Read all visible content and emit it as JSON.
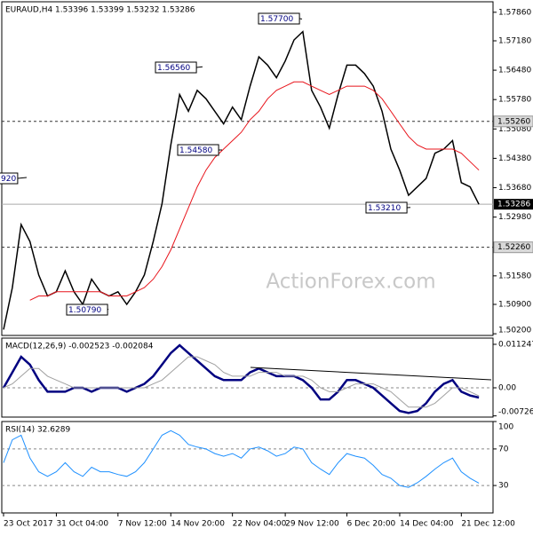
{
  "chart_data": [
    {
      "type": "line",
      "title": "EURAUD,H4 1.53396 1.53399 1.53232 1.53286",
      "x": [
        0,
        1,
        2,
        3,
        4,
        5,
        6,
        7,
        8,
        9,
        10,
        11,
        12,
        13,
        14,
        15,
        16,
        17,
        18,
        19,
        20,
        21,
        22,
        23,
        24,
        25,
        26,
        27,
        28,
        29,
        30,
        31,
        32,
        33,
        34,
        35,
        36,
        37,
        38,
        39,
        40,
        41,
        42,
        43,
        44,
        45,
        46,
        47,
        48,
        49,
        50,
        51,
        52,
        53,
        54
      ],
      "xlim": [
        -0.2,
        55.6
      ],
      "series": [
        {
          "color": "#000000",
          "values": [
            1.503,
            1.513,
            1.528,
            1.524,
            1.516,
            1.511,
            1.512,
            1.517,
            1.512,
            1.509,
            1.515,
            1.512,
            1.511,
            1.512,
            1.509,
            1.512,
            1.516,
            1.524,
            1.533,
            1.547,
            1.559,
            1.555,
            1.56,
            1.558,
            1.555,
            1.552,
            1.556,
            1.553,
            1.561,
            1.568,
            1.566,
            1.563,
            1.567,
            1.572,
            1.574,
            1.56,
            1.556,
            1.551,
            1.559,
            1.566,
            1.566,
            1.564,
            1.561,
            1.555,
            1.546,
            1.541,
            1.535,
            1.537,
            1.539,
            1.545,
            1.546,
            1.548,
            1.538,
            1.537,
            1.53286
          ]
        },
        {
          "color": "#e8141b",
          "values": [
            null,
            null,
            null,
            1.51,
            1.511,
            1.511,
            1.512,
            1.512,
            1.512,
            1.512,
            1.512,
            1.512,
            1.511,
            1.511,
            1.511,
            1.512,
            1.513,
            1.515,
            1.518,
            1.522,
            1.527,
            1.532,
            1.537,
            1.541,
            1.544,
            1.546,
            1.548,
            1.55,
            1.553,
            1.555,
            1.558,
            1.56,
            1.561,
            1.562,
            1.562,
            1.561,
            1.56,
            1.559,
            1.56,
            1.561,
            1.561,
            1.561,
            1.56,
            1.558,
            1.555,
            1.552,
            1.549,
            1.547,
            1.546,
            1.546,
            1.546,
            1.546,
            1.545,
            1.543,
            1.541
          ]
        }
      ],
      "ylim": [
        1.5016,
        1.5811
      ],
      "yticks": [
        {
          "value": 1.5786,
          "label": "1.57860"
        },
        {
          "value": 1.5718,
          "label": "1.57180"
        },
        {
          "value": 1.5648,
          "label": "1.56480"
        },
        {
          "value": 1.5578,
          "label": "1.55780"
        },
        {
          "value": 1.5508,
          "label": "1.55080"
        },
        {
          "value": 1.5438,
          "label": "1.54380"
        },
        {
          "value": 1.5368,
          "label": "1.53680"
        },
        {
          "value": 1.5298,
          "label": "1.52980"
        },
        {
          "value": 1.5158,
          "label": "1.51580"
        },
        {
          "value": 1.509,
          "label": "1.50900"
        },
        {
          "value": 1.502,
          "label": "1.50200"
        }
      ],
      "annotations": [
        {
          "value": 1.577,
          "label": "1.57700"
        },
        {
          "value": 1.5656,
          "label": "1.56560"
        },
        {
          "value": 1.5458,
          "label": "1.54580"
        },
        {
          "value": 1.5321,
          "label": "1.53210"
        },
        {
          "value": 1.5079,
          "label": "1.50790"
        },
        {
          "label": "920"
        }
      ],
      "levels": [
        {
          "value": 1.5526,
          "label": "1.55260"
        },
        {
          "value": 1.5226,
          "label": "1.52260"
        }
      ],
      "current": {
        "value": 1.53286,
        "label": "1.53286"
      },
      "watermark": "ActionForex.com"
    },
    {
      "type": "line",
      "title": "MACD(12,26,9) -0.002523 -0.002084",
      "x": [
        0,
        1,
        2,
        3,
        4,
        5,
        6,
        7,
        8,
        9,
        10,
        11,
        12,
        13,
        14,
        15,
        16,
        17,
        18,
        19,
        20,
        21,
        22,
        23,
        24,
        25,
        26,
        27,
        28,
        29,
        30,
        31,
        32,
        33,
        34,
        35,
        36,
        37,
        38,
        39,
        40,
        41,
        42,
        43,
        44,
        45,
        46,
        47,
        48,
        49,
        50,
        51,
        52,
        53,
        54
      ],
      "xlim": [
        -0.2,
        55.6
      ],
      "series": [
        {
          "color": "#000080",
          "values": [
            0.0,
            0.004,
            0.008,
            0.006,
            0.002,
            -0.001,
            -0.001,
            -0.001,
            0.0,
            0.0,
            -0.001,
            0.0,
            0.0,
            0.0,
            -0.001,
            0.0,
            0.001,
            0.003,
            0.006,
            0.009,
            0.011,
            0.009,
            0.007,
            0.005,
            0.003,
            0.002,
            0.002,
            0.002,
            0.004,
            0.005,
            0.004,
            0.003,
            0.003,
            0.003,
            0.002,
            0.0,
            -0.003,
            -0.003,
            -0.001,
            0.002,
            0.002,
            0.001,
            0.0,
            -0.002,
            -0.004,
            -0.006,
            -0.0065,
            -0.006,
            -0.004,
            -0.001,
            0.001,
            0.002,
            -0.001,
            -0.002,
            -0.002523
          ]
        },
        {
          "color": "#a0a0a0",
          "values": [
            0.0,
            0.001,
            0.003,
            0.005,
            0.005,
            0.003,
            0.002,
            0.001,
            0.0,
            0.0,
            0.0,
            0.0,
            0.0,
            0.0,
            0.0,
            0.0,
            0.0,
            0.001,
            0.002,
            0.004,
            0.006,
            0.008,
            0.008,
            0.007,
            0.006,
            0.004,
            0.003,
            0.003,
            0.003,
            0.004,
            0.004,
            0.004,
            0.003,
            0.003,
            0.003,
            0.002,
            0.0,
            -0.001,
            -0.001,
            0.0,
            0.001,
            0.001,
            0.001,
            0.0,
            -0.001,
            -0.003,
            -0.005,
            -0.005,
            -0.005,
            -0.004,
            -0.002,
            0.0,
            0.0,
            -0.001,
            -0.002084
          ]
        }
      ],
      "ylim": [
        -0.007574,
        0.012854
      ],
      "yticks": [
        0.011247,
        {
          "value": 0,
          "label": "0.00"
        },
        -0.007263
      ]
    },
    {
      "type": "line",
      "title": "RSI(14) 32.6289",
      "x": [
        0,
        1,
        2,
        3,
        4,
        5,
        6,
        7,
        8,
        9,
        10,
        11,
        12,
        13,
        14,
        15,
        16,
        17,
        18,
        19,
        20,
        21,
        22,
        23,
        24,
        25,
        26,
        27,
        28,
        29,
        30,
        31,
        32,
        33,
        34,
        35,
        36,
        37,
        38,
        39,
        40,
        41,
        42,
        43,
        44,
        45,
        46,
        47,
        48,
        49,
        50,
        51,
        52,
        53,
        54
      ],
      "xlim": [
        -0.2,
        55.6
      ],
      "series": [
        {
          "color": "#1e90ff",
          "values": [
            55,
            80,
            85,
            60,
            45,
            40,
            45,
            55,
            45,
            40,
            50,
            45,
            45,
            42,
            40,
            45,
            55,
            70,
            85,
            90,
            85,
            75,
            72,
            70,
            65,
            62,
            65,
            60,
            70,
            72,
            68,
            62,
            65,
            72,
            70,
            55,
            48,
            42,
            55,
            65,
            62,
            60,
            52,
            42,
            38,
            30,
            28,
            33,
            40,
            48,
            55,
            60,
            45,
            38,
            32.6289
          ]
        }
      ],
      "ylim": [
        0,
        100
      ],
      "yticks": [
        100,
        70,
        30
      ],
      "xticks": [
        {
          "value": 0,
          "label": "23 Oct 2017"
        },
        {
          "value": 6,
          "label": "31 Oct 04:00"
        },
        {
          "value": 13,
          "label": "7 Nov 12:00"
        },
        {
          "value": 19,
          "label": "14 Nov 20:00"
        },
        {
          "value": 26,
          "label": "22 Nov 04:00"
        },
        {
          "value": 32,
          "label": "29 Nov 12:00"
        },
        {
          "value": 39,
          "label": "6 Dec 20:00"
        },
        {
          "value": 45,
          "label": "14 Dec 04:00"
        },
        {
          "value": 52,
          "label": "21 Dec 12:00"
        }
      ]
    }
  ]
}
